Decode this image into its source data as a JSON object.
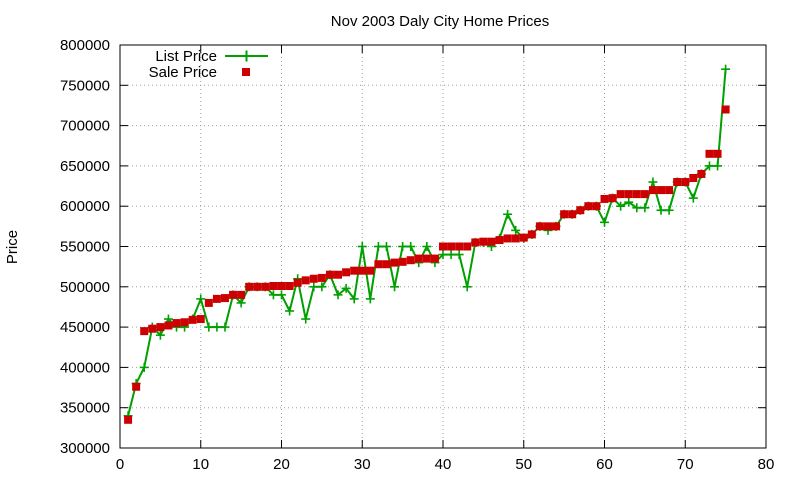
{
  "chart_data": {
    "type": "line",
    "title": "Nov 2003 Daly City Home Prices",
    "xlabel": "",
    "ylabel": "Price",
    "xlim": [
      0,
      80
    ],
    "ylim": [
      300000,
      800000
    ],
    "xticks": [
      0,
      10,
      20,
      30,
      40,
      50,
      60,
      70,
      80
    ],
    "yticks": [
      300000,
      350000,
      400000,
      450000,
      500000,
      550000,
      600000,
      650000,
      700000,
      750000,
      800000
    ],
    "grid": true,
    "legend_position": "top-left",
    "series": [
      {
        "name": "List Price",
        "style": "line-plus-markers",
        "color": "#00a000",
        "x": [
          1,
          2,
          3,
          4,
          5,
          6,
          7,
          8,
          9,
          10,
          11,
          12,
          13,
          14,
          15,
          16,
          17,
          18,
          19,
          20,
          21,
          22,
          23,
          24,
          25,
          26,
          27,
          28,
          29,
          30,
          31,
          32,
          33,
          34,
          35,
          36,
          37,
          38,
          39,
          40,
          41,
          42,
          43,
          44,
          45,
          46,
          47,
          48,
          49,
          50,
          51,
          52,
          53,
          54,
          55,
          56,
          57,
          58,
          59,
          60,
          61,
          62,
          63,
          64,
          65,
          66,
          67,
          68,
          69,
          70,
          71,
          72,
          73,
          74,
          75
        ],
        "y": [
          340000,
          380000,
          400000,
          450000,
          440000,
          460000,
          450000,
          450000,
          460000,
          485000,
          450000,
          450000,
          450000,
          490000,
          480000,
          500000,
          500000,
          500000,
          490000,
          490000,
          470000,
          510000,
          460000,
          500000,
          500000,
          515000,
          490000,
          498000,
          485000,
          550000,
          485000,
          550000,
          550000,
          500000,
          550000,
          550000,
          530000,
          550000,
          530000,
          540000,
          540000,
          540000,
          500000,
          555000,
          555000,
          550000,
          560000,
          590000,
          570000,
          560000,
          565000,
          575000,
          570000,
          575000,
          590000,
          590000,
          595000,
          600000,
          600000,
          580000,
          610000,
          600000,
          605000,
          598000,
          598000,
          630000,
          595000,
          595000,
          630000,
          630000,
          610000,
          640000,
          650000,
          650000,
          770000
        ]
      },
      {
        "name": "Sale Price",
        "style": "square-markers",
        "color": "#cc0000",
        "x": [
          1,
          2,
          3,
          4,
          5,
          6,
          7,
          8,
          9,
          10,
          11,
          12,
          13,
          14,
          15,
          16,
          17,
          18,
          19,
          20,
          21,
          22,
          23,
          24,
          25,
          26,
          27,
          28,
          29,
          30,
          31,
          32,
          33,
          34,
          35,
          36,
          37,
          38,
          39,
          40,
          41,
          42,
          43,
          44,
          45,
          46,
          47,
          48,
          49,
          50,
          51,
          52,
          53,
          54,
          55,
          56,
          57,
          58,
          59,
          60,
          61,
          62,
          63,
          64,
          65,
          66,
          67,
          68,
          69,
          70,
          71,
          72,
          73,
          74,
          75
        ],
        "y": [
          335000,
          376000,
          445000,
          448000,
          450000,
          452000,
          455000,
          456000,
          459000,
          460000,
          480000,
          485000,
          486000,
          490000,
          490000,
          500000,
          500000,
          500000,
          501000,
          501000,
          501000,
          505000,
          508000,
          510000,
          511000,
          515000,
          515000,
          518000,
          520000,
          520000,
          520000,
          528000,
          528000,
          530000,
          531000,
          533000,
          535000,
          535000,
          535000,
          550000,
          550000,
          550000,
          550000,
          555000,
          556000,
          556000,
          558000,
          560000,
          560000,
          561000,
          565000,
          575000,
          575000,
          575000,
          590000,
          590000,
          595000,
          600000,
          600000,
          609000,
          610000,
          615000,
          615000,
          615000,
          615000,
          620000,
          620000,
          620000,
          630000,
          630000,
          635000,
          640000,
          665000,
          665000,
          720000
        ]
      }
    ]
  },
  "colors": {
    "grid": "#a0a0a0",
    "axis": "#000000",
    "list_price": "#00a000",
    "sale_price": "#cc0000"
  }
}
